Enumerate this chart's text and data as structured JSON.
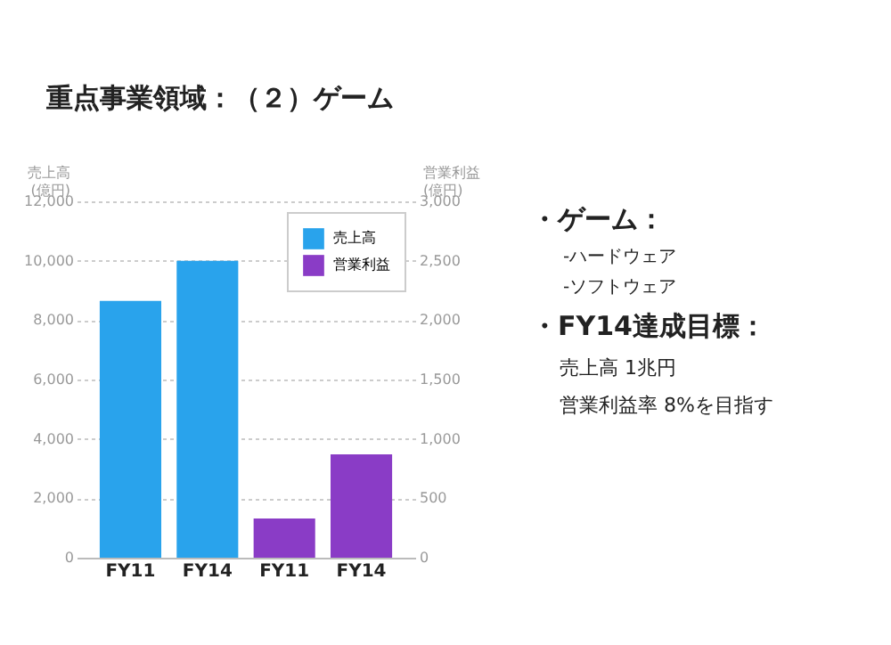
{
  "chart_data": {
    "type": "bar",
    "title": "重点事業領域：（２）ゲーム",
    "categories": [
      "FY11",
      "FY14",
      "FY11",
      "FY14"
    ],
    "series": [
      {
        "name": "売上高",
        "color": "#29a3ec",
        "values": [
          8650,
          10000,
          null,
          null
        ]
      },
      {
        "name": "営業利益",
        "color": "#8a3cc6",
        "values": [
          null,
          null,
          330,
          870
        ],
        "axis": "y2"
      }
    ],
    "ylabel": "売上高 (億円)",
    "y2label": "営業利益 (億円)",
    "ylim": [
      0,
      12000
    ],
    "yticks": [
      0,
      {
        "value": 2000,
        "label": "2,000"
      },
      {
        "value": 4000,
        "label": "4,000"
      },
      {
        "value": 6000,
        "label": "6,000"
      },
      {
        "value": 8000,
        "label": "8,000"
      },
      {
        "value": 10000,
        "label": "10,000"
      },
      {
        "value": 12000,
        "label": "12,000"
      }
    ],
    "y2lim": [
      0,
      3000
    ],
    "y2ticks": [
      0,
      500,
      {
        "value": 1000,
        "label": "1,000"
      },
      {
        "value": 1500,
        "label": "1,500"
      },
      {
        "value": 2000,
        "label": "2,000"
      },
      {
        "value": 2500,
        "label": "2,500"
      },
      {
        "value": 3000,
        "label": "3,000"
      }
    ],
    "grid": "y",
    "legend": "top right",
    "annotations": [
      "・ゲーム：",
      "-ハードウェア",
      "-ソフトウェア",
      "・FY14達成目標：",
      "売上高 1兆円",
      "営業利益率 8%を目指す"
    ]
  }
}
